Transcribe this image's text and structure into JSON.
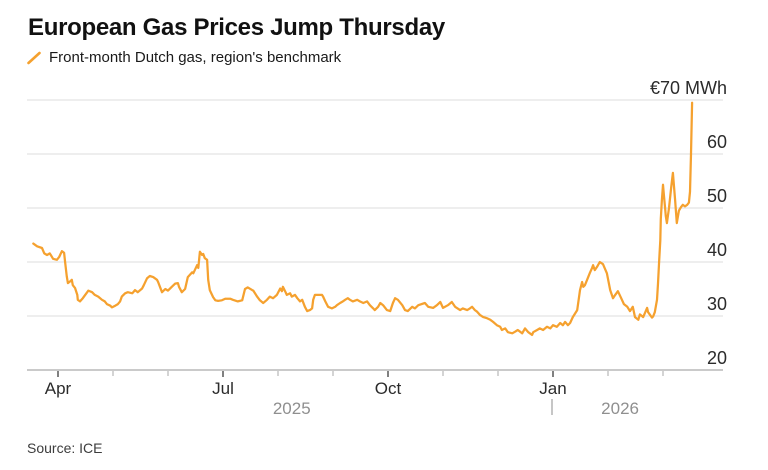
{
  "header": {
    "title": "European Gas Prices Jump Thursday",
    "legend": {
      "marker": "slash-icon",
      "label": "Front-month Dutch gas, region's benchmark"
    }
  },
  "footer": {
    "source": "Source: ICE"
  },
  "colors": {
    "line": "#F5A12F",
    "grid": "#dcdcdc",
    "axis_line": "#aaaaaa",
    "tick_major": "#555555",
    "axis_text": "#2b2b2b",
    "year_text": "#8f8f8f",
    "divider": "#b3b3b3",
    "title_text": "#111111",
    "source_text": "#3d3d3d"
  },
  "chart_data": {
    "type": "line",
    "title": "European Gas Prices Jump Thursday",
    "series_name": "Front-month Dutch gas, region's benchmark",
    "unit": "EUR per MWh",
    "line_color": "#F5A12F",
    "ylim": [
      20,
      70
    ],
    "grid": true,
    "legend_position": "top-left",
    "y_ticks": [
      {
        "v": 20,
        "label": "20"
      },
      {
        "v": 30,
        "label": "30"
      },
      {
        "v": 40,
        "label": "40"
      },
      {
        "v": 50,
        "label": "50"
      },
      {
        "v": 60,
        "label": "60"
      },
      {
        "v": 70,
        "label": "€70 MWh"
      }
    ],
    "x_axis": {
      "note": "x of each point = months since 2025-03-01 (Apr=1 ... Jan=10, Mar 2026=12)",
      "minor_ticks": [
        1,
        2,
        3,
        4,
        5,
        6,
        7,
        8,
        9,
        10,
        11,
        12
      ],
      "major_ticks": [
        {
          "m": 1,
          "label": "Apr"
        },
        {
          "m": 4,
          "label": "Jul"
        },
        {
          "m": 7,
          "label": "Oct"
        },
        {
          "m": 10,
          "label": "Jan"
        }
      ],
      "year_labels": [
        {
          "m": 5.25,
          "label": "2025"
        },
        {
          "m": 11.22,
          "label": "2026"
        }
      ],
      "year_divider_m": 10
    },
    "points": [
      [
        0.55,
        43.4
      ],
      [
        0.62,
        42.9
      ],
      [
        0.71,
        42.6
      ],
      [
        0.75,
        41.6
      ],
      [
        0.8,
        41.3
      ],
      [
        0.85,
        41.6
      ],
      [
        0.91,
        40.6
      ],
      [
        0.98,
        40.4
      ],
      [
        1.02,
        40.9
      ],
      [
        1.07,
        42.0
      ],
      [
        1.11,
        41.7
      ],
      [
        1.13,
        40.0
      ],
      [
        1.16,
        37.3
      ],
      [
        1.18,
        36.1
      ],
      [
        1.22,
        36.4
      ],
      [
        1.25,
        36.7
      ],
      [
        1.27,
        35.7
      ],
      [
        1.31,
        35.2
      ],
      [
        1.35,
        33.9
      ],
      [
        1.36,
        33.0
      ],
      [
        1.4,
        32.7
      ],
      [
        1.45,
        33.3
      ],
      [
        1.53,
        34.4
      ],
      [
        1.55,
        34.7
      ],
      [
        1.62,
        34.4
      ],
      [
        1.67,
        33.9
      ],
      [
        1.73,
        33.6
      ],
      [
        1.8,
        33.0
      ],
      [
        1.85,
        32.7
      ],
      [
        1.89,
        32.2
      ],
      [
        1.95,
        31.9
      ],
      [
        1.98,
        31.6
      ],
      [
        2.04,
        31.9
      ],
      [
        2.09,
        32.2
      ],
      [
        2.13,
        32.7
      ],
      [
        2.16,
        33.6
      ],
      [
        2.22,
        34.2
      ],
      [
        2.27,
        34.4
      ],
      [
        2.35,
        34.2
      ],
      [
        2.4,
        34.8
      ],
      [
        2.45,
        34.4
      ],
      [
        2.53,
        35.1
      ],
      [
        2.56,
        35.7
      ],
      [
        2.62,
        37.0
      ],
      [
        2.67,
        37.4
      ],
      [
        2.73,
        37.2
      ],
      [
        2.8,
        36.7
      ],
      [
        2.82,
        36.3
      ],
      [
        2.89,
        34.4
      ],
      [
        2.95,
        35.0
      ],
      [
        3.0,
        34.7
      ],
      [
        3.07,
        35.4
      ],
      [
        3.13,
        36.0
      ],
      [
        3.18,
        36.1
      ],
      [
        3.2,
        35.4
      ],
      [
        3.25,
        34.4
      ],
      [
        3.31,
        35.0
      ],
      [
        3.36,
        37.2
      ],
      [
        3.44,
        38.1
      ],
      [
        3.46,
        37.9
      ],
      [
        3.53,
        39.4
      ],
      [
        3.55,
        38.9
      ],
      [
        3.58,
        41.9
      ],
      [
        3.62,
        41.3
      ],
      [
        3.64,
        41.5
      ],
      [
        3.67,
        40.7
      ],
      [
        3.71,
        40.4
      ],
      [
        3.73,
        36.7
      ],
      [
        3.76,
        34.8
      ],
      [
        3.82,
        33.5
      ],
      [
        3.86,
        32.9
      ],
      [
        3.91,
        32.8
      ],
      [
        3.98,
        32.9
      ],
      [
        4.04,
        33.2
      ],
      [
        4.13,
        33.2
      ],
      [
        4.18,
        33.0
      ],
      [
        4.27,
        32.7
      ],
      [
        4.35,
        32.9
      ],
      [
        4.4,
        35.0
      ],
      [
        4.45,
        35.3
      ],
      [
        4.53,
        34.8
      ],
      [
        4.55,
        34.7
      ],
      [
        4.62,
        33.6
      ],
      [
        4.67,
        32.9
      ],
      [
        4.73,
        32.4
      ],
      [
        4.8,
        33.0
      ],
      [
        4.85,
        33.6
      ],
      [
        4.91,
        33.3
      ],
      [
        4.98,
        33.9
      ],
      [
        5.04,
        35.1
      ],
      [
        5.07,
        34.6
      ],
      [
        5.09,
        35.4
      ],
      [
        5.13,
        34.6
      ],
      [
        5.16,
        33.9
      ],
      [
        5.22,
        34.2
      ],
      [
        5.25,
        33.6
      ],
      [
        5.31,
        33.9
      ],
      [
        5.35,
        33.3
      ],
      [
        5.4,
        32.7
      ],
      [
        5.44,
        33.0
      ],
      [
        5.49,
        31.7
      ],
      [
        5.53,
        30.9
      ],
      [
        5.58,
        31.1
      ],
      [
        5.62,
        31.4
      ],
      [
        5.64,
        33.0
      ],
      [
        5.67,
        33.9
      ],
      [
        5.73,
        33.9
      ],
      [
        5.8,
        33.9
      ],
      [
        5.82,
        33.6
      ],
      [
        5.86,
        32.7
      ],
      [
        5.91,
        31.7
      ],
      [
        5.98,
        31.4
      ],
      [
        6.04,
        31.7
      ],
      [
        6.07,
        32.0
      ],
      [
        6.13,
        32.4
      ],
      [
        6.18,
        32.7
      ],
      [
        6.22,
        33.0
      ],
      [
        6.27,
        33.3
      ],
      [
        6.31,
        33.0
      ],
      [
        6.36,
        32.7
      ],
      [
        6.44,
        33.0
      ],
      [
        6.49,
        32.7
      ],
      [
        6.55,
        32.4
      ],
      [
        6.62,
        32.7
      ],
      [
        6.67,
        32.0
      ],
      [
        6.73,
        31.4
      ],
      [
        6.76,
        31.1
      ],
      [
        6.82,
        31.7
      ],
      [
        6.86,
        32.4
      ],
      [
        6.91,
        32.0
      ],
      [
        6.98,
        31.1
      ],
      [
        7.04,
        30.9
      ],
      [
        7.09,
        32.4
      ],
      [
        7.13,
        33.3
      ],
      [
        7.18,
        33.0
      ],
      [
        7.26,
        32.0
      ],
      [
        7.31,
        31.1
      ],
      [
        7.36,
        30.9
      ],
      [
        7.44,
        31.7
      ],
      [
        7.49,
        31.4
      ],
      [
        7.55,
        32.0
      ],
      [
        7.67,
        32.4
      ],
      [
        7.73,
        31.7
      ],
      [
        7.82,
        31.5
      ],
      [
        7.89,
        32.0
      ],
      [
        7.95,
        32.6
      ],
      [
        8.0,
        31.5
      ],
      [
        8.09,
        32.0
      ],
      [
        8.16,
        32.6
      ],
      [
        8.22,
        31.7
      ],
      [
        8.31,
        31.1
      ],
      [
        8.36,
        31.4
      ],
      [
        8.44,
        31.1
      ],
      [
        8.49,
        31.4
      ],
      [
        8.53,
        31.7
      ],
      [
        8.58,
        31.1
      ],
      [
        8.62,
        30.8
      ],
      [
        8.67,
        30.2
      ],
      [
        8.73,
        29.8
      ],
      [
        8.8,
        29.6
      ],
      [
        8.86,
        29.3
      ],
      [
        8.91,
        28.9
      ],
      [
        8.98,
        28.3
      ],
      [
        9.04,
        28.0
      ],
      [
        9.07,
        27.4
      ],
      [
        9.13,
        27.7
      ],
      [
        9.18,
        27.0
      ],
      [
        9.26,
        26.8
      ],
      [
        9.31,
        27.1
      ],
      [
        9.36,
        27.4
      ],
      [
        9.44,
        26.8
      ],
      [
        9.49,
        27.7
      ],
      [
        9.55,
        27.0
      ],
      [
        9.62,
        26.5
      ],
      [
        9.64,
        27.0
      ],
      [
        9.71,
        27.4
      ],
      [
        9.76,
        27.7
      ],
      [
        9.82,
        27.4
      ],
      [
        9.89,
        28.0
      ],
      [
        9.95,
        27.7
      ],
      [
        10.0,
        28.3
      ],
      [
        10.07,
        28.0
      ],
      [
        10.13,
        28.7
      ],
      [
        10.18,
        28.3
      ],
      [
        10.22,
        28.9
      ],
      [
        10.27,
        28.3
      ],
      [
        10.31,
        28.7
      ],
      [
        10.36,
        29.8
      ],
      [
        10.44,
        31.1
      ],
      [
        10.49,
        34.8
      ],
      [
        10.53,
        36.3
      ],
      [
        10.55,
        35.4
      ],
      [
        10.58,
        35.7
      ],
      [
        10.62,
        36.7
      ],
      [
        10.67,
        38.0
      ],
      [
        10.71,
        38.9
      ],
      [
        10.73,
        39.4
      ],
      [
        10.76,
        38.5
      ],
      [
        10.8,
        39.1
      ],
      [
        10.85,
        40.0
      ],
      [
        10.91,
        39.6
      ],
      [
        10.98,
        37.9
      ],
      [
        11.04,
        34.8
      ],
      [
        11.09,
        33.3
      ],
      [
        11.13,
        33.9
      ],
      [
        11.18,
        34.6
      ],
      [
        11.24,
        33.3
      ],
      [
        11.29,
        32.2
      ],
      [
        11.35,
        31.7
      ],
      [
        11.4,
        30.9
      ],
      [
        11.45,
        31.7
      ],
      [
        11.49,
        29.8
      ],
      [
        11.55,
        29.3
      ],
      [
        11.58,
        30.3
      ],
      [
        11.64,
        29.8
      ],
      [
        11.71,
        31.5
      ],
      [
        11.73,
        30.7
      ],
      [
        11.8,
        29.7
      ],
      [
        11.82,
        29.9
      ],
      [
        11.85,
        30.7
      ],
      [
        11.89,
        33.0
      ],
      [
        11.91,
        36.0
      ],
      [
        11.93,
        40.0
      ],
      [
        11.95,
        44.0
      ],
      [
        11.96,
        48.0
      ],
      [
        11.98,
        51.5
      ],
      [
        12.0,
        54.3
      ],
      [
        12.02,
        52.0
      ],
      [
        12.04,
        49.8
      ],
      [
        12.05,
        48.5
      ],
      [
        12.07,
        47.2
      ],
      [
        12.11,
        50.0
      ],
      [
        12.15,
        54.0
      ],
      [
        12.18,
        56.5
      ],
      [
        12.22,
        51.5
      ],
      [
        12.25,
        47.2
      ],
      [
        12.29,
        49.5
      ],
      [
        12.33,
        50.2
      ],
      [
        12.36,
        50.6
      ],
      [
        12.4,
        50.3
      ],
      [
        12.44,
        50.6
      ],
      [
        12.47,
        51.0
      ],
      [
        12.49,
        53.0
      ],
      [
        12.51,
        60.0
      ],
      [
        12.53,
        69.5
      ]
    ]
  }
}
